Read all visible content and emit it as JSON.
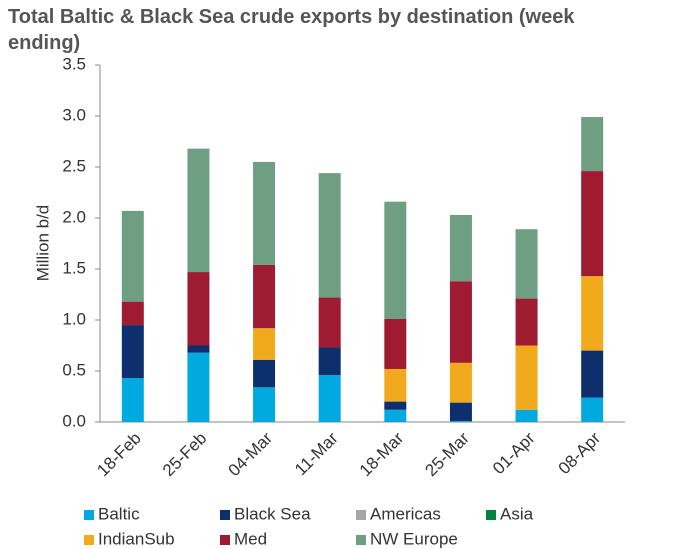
{
  "chart_data": {
    "type": "stacked_bar",
    "title": "Total Baltic & Black Sea crude exports by destination (week ending)",
    "y_label": "Million b/d",
    "categories": [
      "18-Feb",
      "25-Feb",
      "04-Mar",
      "11-Mar",
      "18-Mar",
      "25-Mar",
      "01-Apr",
      "08-Apr"
    ],
    "series": [
      {
        "name": "Baltic",
        "color": "#00a9e0",
        "values": [
          0.43,
          0.68,
          0.34,
          0.46,
          0.12,
          0.01,
          0.12,
          0.24
        ]
      },
      {
        "name": "Black Sea",
        "color": "#0d2f6e",
        "values": [
          0.52,
          0.07,
          0.27,
          0.27,
          0.08,
          0.18,
          0,
          0.46
        ]
      },
      {
        "name": "Americas",
        "color": "#a6a6a6",
        "values": [
          0,
          0,
          0,
          0,
          0,
          0,
          0,
          0
        ]
      },
      {
        "name": "Asia",
        "color": "#00843d",
        "values": [
          0,
          0,
          0,
          0,
          0,
          0,
          0,
          0
        ]
      },
      {
        "name": "IndianSub",
        "color": "#f0aa1c",
        "values": [
          0,
          0,
          0.31,
          0,
          0.32,
          0.39,
          0.63,
          0.73
        ]
      },
      {
        "name": "Med",
        "color": "#9e1b32",
        "values": [
          0.23,
          0.72,
          0.62,
          0.49,
          0.49,
          0.8,
          0.46,
          1.03
        ]
      },
      {
        "name": "NW Europe",
        "color": "#6f9f83",
        "values": [
          0.89,
          1.21,
          1.01,
          1.22,
          1.15,
          0.65,
          0.68,
          0.53
        ]
      }
    ],
    "ylim": [
      0,
      3.5
    ],
    "yticks": [
      {
        "value": 0,
        "label": "0.0"
      },
      0.5,
      {
        "value": 1,
        "label": "1.0"
      },
      1.5,
      {
        "value": 2,
        "label": "2.0"
      },
      2.5,
      {
        "value": 3,
        "label": "3.0"
      },
      3.5
    ],
    "legend": "bottom"
  }
}
